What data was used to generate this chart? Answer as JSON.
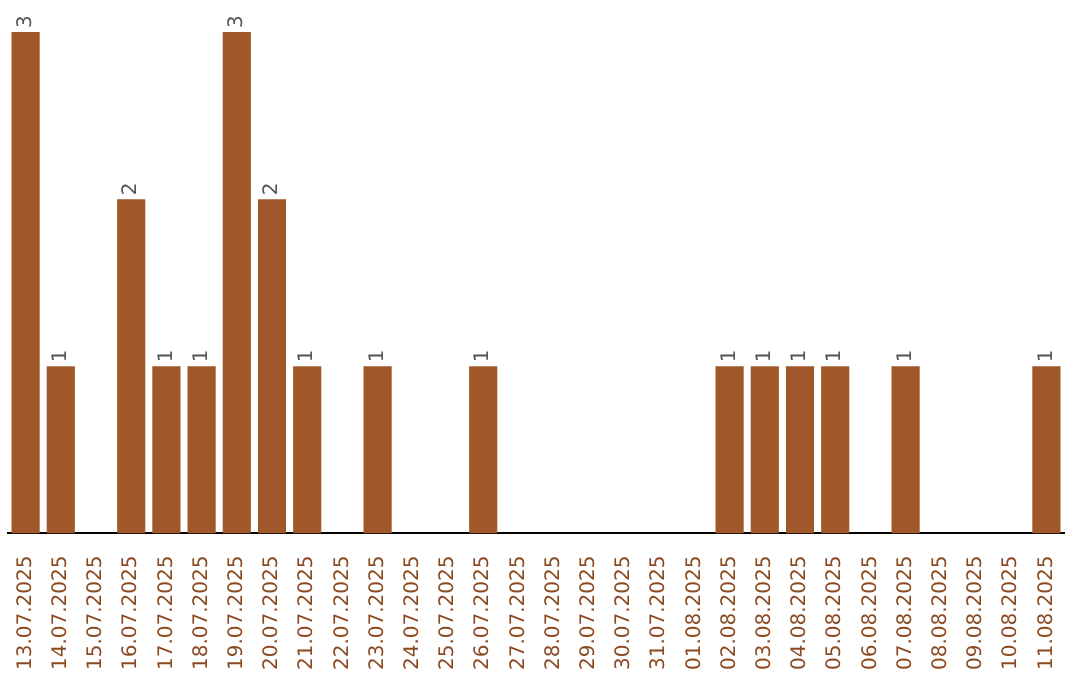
{
  "chart_data": {
    "type": "bar",
    "categories": [
      "13.07.2025",
      "14.07.2025",
      "15.07.2025",
      "16.07.2025",
      "17.07.2025",
      "18.07.2025",
      "19.07.2025",
      "20.07.2025",
      "21.07.2025",
      "22.07.2025",
      "23.07.2025",
      "24.07.2025",
      "25.07.2025",
      "26.07.2025",
      "27.07.2025",
      "28.07.2025",
      "29.07.2025",
      "30.07.2025",
      "31.07.2025",
      "01.08.2025",
      "02.08.2025",
      "03.08.2025",
      "04.08.2025",
      "05.08.2025",
      "06.08.2025",
      "07.08.2025",
      "08.08.2025",
      "09.08.2025",
      "10.08.2025",
      "11.08.2025"
    ],
    "values": [
      3,
      1,
      0,
      2,
      1,
      1,
      3,
      2,
      1,
      0,
      1,
      0,
      0,
      1,
      0,
      0,
      0,
      0,
      0,
      0,
      1,
      1,
      1,
      1,
      0,
      1,
      0,
      0,
      0,
      1
    ],
    "value_labels": [
      "3",
      "1",
      null,
      "2",
      "1",
      "1",
      "3",
      "2",
      "1",
      null,
      "1",
      null,
      null,
      "1",
      null,
      null,
      null,
      null,
      null,
      null,
      "1",
      "1",
      "1",
      "1",
      null,
      "1",
      null,
      null,
      null,
      "1"
    ],
    "color": "#a0572a",
    "grid": false,
    "legend": false
  }
}
